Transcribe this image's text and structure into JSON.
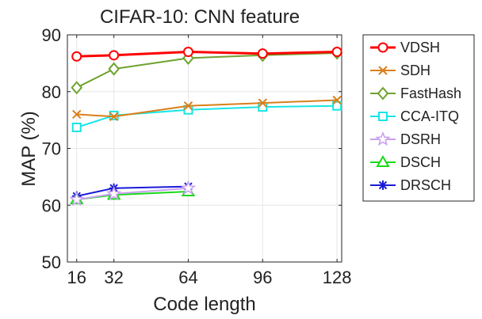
{
  "chart_data": {
    "type": "line",
    "title": "CIFAR-10: CNN feature",
    "xlabel": "Code length",
    "ylabel": "MAP (%)",
    "x_ticks": [
      16,
      32,
      64,
      96,
      128
    ],
    "y_ticks": [
      50,
      60,
      70,
      80,
      90
    ],
    "xlim": [
      12,
      130
    ],
    "ylim": [
      50,
      90
    ],
    "grid": true,
    "legend_position": "outside-right",
    "series": [
      {
        "name": "VDSH",
        "color": "#ff0000",
        "marker": "circle",
        "x": [
          16,
          32,
          64,
          96,
          128
        ],
        "y": [
          86.2,
          86.4,
          87.0,
          86.7,
          87.0
        ]
      },
      {
        "name": "SDH",
        "color": "#d97f1a",
        "marker": "x",
        "x": [
          16,
          32,
          64,
          96,
          128
        ],
        "y": [
          76.0,
          75.6,
          77.5,
          78.0,
          78.5
        ]
      },
      {
        "name": "FastHash",
        "color": "#6ea32f",
        "marker": "diamond",
        "x": [
          16,
          32,
          64,
          96,
          128
        ],
        "y": [
          80.7,
          84.0,
          85.9,
          86.4,
          86.8
        ]
      },
      {
        "name": "CCA-ITQ",
        "color": "#17e5e5",
        "marker": "square",
        "x": [
          16,
          32,
          64,
          96,
          128
        ],
        "y": [
          73.7,
          75.8,
          76.8,
          77.3,
          77.5
        ]
      },
      {
        "name": "DSRH",
        "color": "#c9a2ef",
        "marker": "star",
        "x": [
          16,
          32,
          64
        ],
        "y": [
          61.0,
          62.0,
          63.0
        ]
      },
      {
        "name": "DSCH",
        "color": "#19d919",
        "marker": "triangle",
        "x": [
          16,
          32,
          64
        ],
        "y": [
          61.0,
          61.8,
          62.4
        ]
      },
      {
        "name": "DRSCH",
        "color": "#1a1ad9",
        "marker": "asterisk",
        "x": [
          16,
          32,
          64
        ],
        "y": [
          61.6,
          63.0,
          63.3
        ]
      }
    ]
  }
}
